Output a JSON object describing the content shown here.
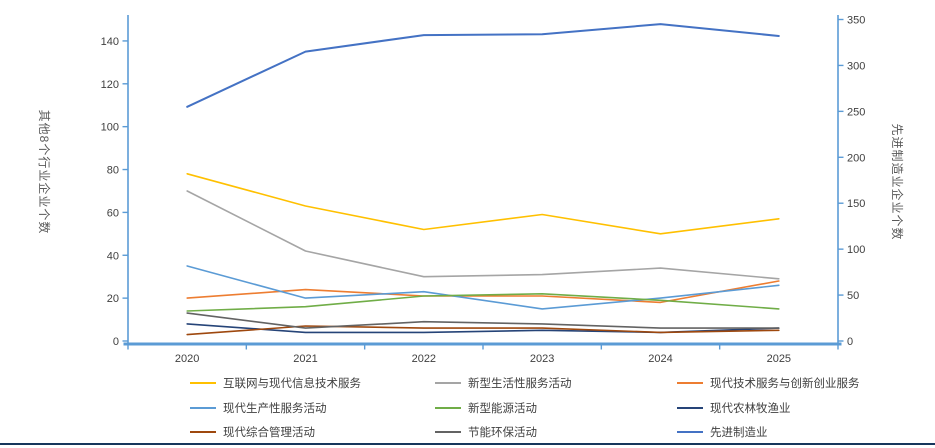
{
  "page": {
    "bottom_border_color": "#16365C",
    "background_color": "#FFFFFF"
  },
  "style": {
    "axis_color": "#5B9BD5",
    "tick_label_color": "#404040",
    "axis_title_color": "#595959",
    "legend_text_color": "#404040"
  },
  "chart_data": {
    "type": "line",
    "title": "",
    "grid": false,
    "legend_position": "bottom",
    "categories": [
      "2020",
      "2021",
      "2022",
      "2023",
      "2024",
      "2025"
    ],
    "left_axis": {
      "title": "其他8个行业企业个数",
      "min": 0,
      "max": 150,
      "tick_step": 20,
      "tick_labels": [
        "0",
        "20",
        "40",
        "60",
        "80",
        "100",
        "120",
        "140"
      ]
    },
    "right_axis": {
      "title": "先进制造业企业个数",
      "min": 0,
      "max": 350,
      "tick_step": 50,
      "tick_labels": [
        "0",
        "50",
        "100",
        "150",
        "200",
        "250",
        "300",
        "350"
      ]
    },
    "series": [
      {
        "name": "互联网与现代信息技术服务",
        "color": "#FFC000",
        "axis": "left",
        "values": [
          78,
          63,
          52,
          59,
          50,
          57
        ]
      },
      {
        "name": "新型生活性服务活动",
        "color": "#A5A5A5",
        "axis": "left",
        "values": [
          70,
          42,
          30,
          31,
          34,
          29
        ]
      },
      {
        "name": "现代技术服务与创新创业服务",
        "color": "#ED7D31",
        "axis": "left",
        "values": [
          20,
          24,
          21,
          21,
          18,
          28
        ]
      },
      {
        "name": "现代生产性服务活动",
        "color": "#5B9BD5",
        "axis": "left",
        "values": [
          35,
          20,
          23,
          15,
          20,
          26
        ]
      },
      {
        "name": "新型能源活动",
        "color": "#70AD47",
        "axis": "left",
        "values": [
          14,
          16,
          21,
          22,
          19,
          15
        ]
      },
      {
        "name": "现代农林牧渔业",
        "color": "#264478",
        "axis": "left",
        "values": [
          8,
          4,
          4,
          5,
          4,
          6
        ]
      },
      {
        "name": "现代综合管理活动",
        "color": "#9E480E",
        "axis": "left",
        "values": [
          3,
          7,
          6,
          6,
          4,
          5
        ]
      },
      {
        "name": "节能环保活动",
        "color": "#636363",
        "axis": "left",
        "values": [
          13,
          6,
          9,
          8,
          6,
          6
        ]
      },
      {
        "name": "先进制造业",
        "color": "#4472C4",
        "axis": "right",
        "values": [
          255,
          315,
          333,
          334,
          345,
          332
        ]
      }
    ]
  }
}
